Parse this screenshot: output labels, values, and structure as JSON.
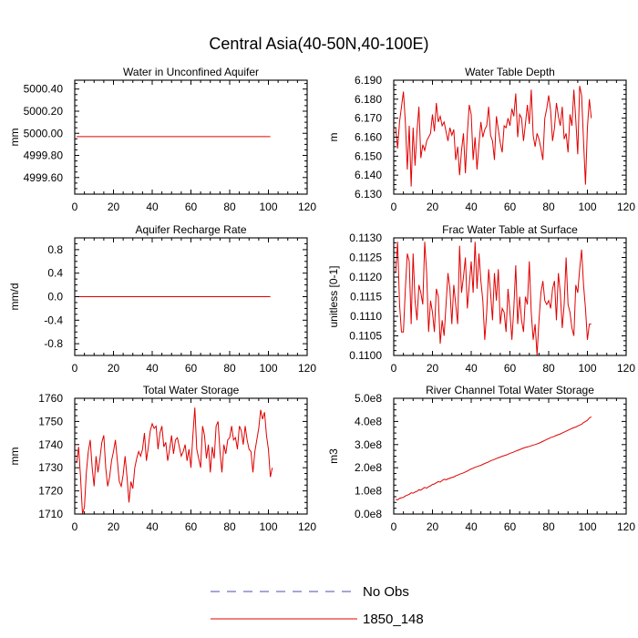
{
  "figure_title": "Central Asia(40-50N,40-100E)",
  "legend": [
    {
      "label": "No Obs",
      "color": "#4b4bb4",
      "style": "dashed"
    },
    {
      "label": "1850_148",
      "color": "#e00000",
      "style": "solid"
    }
  ],
  "chart_data": [
    {
      "type": "line",
      "title": "Water in Unconfined Aquifer",
      "ylabel": "mm",
      "xlim": [
        0,
        120
      ],
      "ylim": [
        4999.45,
        5000.48
      ],
      "xticks": [
        0,
        20,
        40,
        60,
        80,
        100,
        120
      ],
      "yticks": [
        4999.6,
        4999.8,
        5000.0,
        5000.2,
        5000.4
      ],
      "ytick_labels": [
        "4999.60",
        "4999.80",
        "5000.00",
        "5000.20",
        "5000.40"
      ],
      "series": [
        {
          "name": "1850_148",
          "x_start": 1,
          "x_step": 1,
          "values": [
            4999.97,
            4999.97,
            4999.97,
            4999.97,
            4999.97,
            4999.97,
            4999.97,
            4999.97,
            4999.97,
            4999.97,
            4999.97,
            4999.97,
            4999.97,
            4999.97,
            4999.97,
            4999.97,
            4999.97,
            4999.97,
            4999.97,
            4999.97,
            4999.97,
            4999.97,
            4999.97,
            4999.97,
            4999.97,
            4999.97,
            4999.97,
            4999.97,
            4999.97,
            4999.97,
            4999.97,
            4999.97,
            4999.97,
            4999.97,
            4999.97,
            4999.97,
            4999.97,
            4999.97,
            4999.97,
            4999.97,
            4999.97,
            4999.97,
            4999.97,
            4999.97,
            4999.97,
            4999.97,
            4999.97,
            4999.97,
            4999.97,
            4999.97,
            4999.97,
            4999.97,
            4999.97,
            4999.97,
            4999.97,
            4999.97,
            4999.97,
            4999.97,
            4999.97,
            4999.97,
            4999.97,
            4999.97,
            4999.97,
            4999.97,
            4999.97,
            4999.97,
            4999.97,
            4999.97,
            4999.97,
            4999.97,
            4999.97,
            4999.97,
            4999.97,
            4999.97,
            4999.97,
            4999.97,
            4999.97,
            4999.97,
            4999.97,
            4999.97,
            4999.97,
            4999.97,
            4999.97,
            4999.97,
            4999.97,
            4999.97,
            4999.97,
            4999.97,
            4999.97,
            4999.97,
            4999.97,
            4999.97,
            4999.97,
            4999.97,
            4999.97,
            4999.97,
            4999.97,
            4999.97,
            4999.97,
            4999.97,
            4999.97
          ]
        }
      ]
    },
    {
      "type": "line",
      "title": "Water Table Depth",
      "ylabel": "m",
      "xlim": [
        0,
        120
      ],
      "ylim": [
        6.13,
        6.19
      ],
      "xticks": [
        0,
        20,
        40,
        60,
        80,
        100,
        120
      ],
      "yticks": [
        6.13,
        6.14,
        6.15,
        6.16,
        6.17,
        6.18,
        6.19
      ],
      "ytick_labels": [
        "6.130",
        "6.140",
        "6.150",
        "6.160",
        "6.170",
        "6.180",
        "6.190"
      ],
      "series": [
        {
          "name": "1850_148",
          "x_start": 1,
          "x_step": 1,
          "values": [
            6.165,
            6.154,
            6.168,
            6.176,
            6.184,
            6.168,
            6.143,
            6.166,
            6.134,
            6.165,
            6.145,
            6.163,
            6.176,
            6.149,
            6.156,
            6.153,
            6.158,
            6.16,
            6.162,
            6.172,
            6.163,
            6.178,
            6.168,
            6.171,
            6.166,
            6.168,
            6.163,
            6.158,
            6.165,
            6.161,
            6.164,
            6.148,
            6.155,
            6.14,
            6.153,
            6.162,
            6.141,
            6.162,
            6.177,
            6.172,
            6.148,
            6.16,
            6.143,
            6.156,
            6.168,
            6.16,
            6.164,
            6.166,
            6.176,
            6.161,
            6.158,
            6.148,
            6.171,
            6.164,
            6.157,
            6.152,
            6.166,
            6.165,
            6.17,
            6.166,
            6.175,
            6.171,
            6.183,
            6.16,
            6.172,
            6.17,
            6.158,
            6.167,
            6.177,
            6.167,
            6.185,
            6.161,
            6.155,
            6.162,
            6.159,
            6.154,
            6.148,
            6.17,
            6.175,
            6.182,
            6.174,
            6.158,
            6.165,
            6.178,
            6.171,
            6.166,
            6.176,
            6.159,
            6.162,
            6.152,
            6.172,
            6.166,
            6.185,
            6.169,
            6.151,
            6.187,
            6.182,
            6.158,
            6.135,
            6.165,
            6.18,
            6.17
          ]
        }
      ]
    },
    {
      "type": "line",
      "title": "Aquifer Recharge Rate",
      "ylabel": "mm/d",
      "xlim": [
        0,
        120
      ],
      "ylim": [
        -1.0,
        1.0
      ],
      "xticks": [
        0,
        20,
        40,
        60,
        80,
        100,
        120
      ],
      "yticks": [
        -0.8,
        -0.4,
        0.0,
        0.4,
        0.8
      ],
      "ytick_labels": [
        "-0.8",
        "-0.4",
        "0.0",
        "0.4",
        "0.8"
      ],
      "series": [
        {
          "name": "1850_148",
          "x_start": 1,
          "x_step": 1,
          "values": [
            0.0,
            0.0,
            0.0,
            0.0,
            0.0,
            0.0,
            0.0,
            0.0,
            0.0,
            0.0,
            0.0,
            0.0,
            0.0,
            0.0,
            0.0,
            0.0,
            0.0,
            0.0,
            0.0,
            0.0,
            0.0,
            0.0,
            0.0,
            0.0,
            0.0,
            0.0,
            0.0,
            0.0,
            0.0,
            0.0,
            0.0,
            0.0,
            0.0,
            0.0,
            0.0,
            0.0,
            0.0,
            0.0,
            0.0,
            0.0,
            0.0,
            0.0,
            0.0,
            0.0,
            0.0,
            0.0,
            0.0,
            0.0,
            0.0,
            0.0,
            0.0,
            0.0,
            0.0,
            0.0,
            0.0,
            0.0,
            0.0,
            0.0,
            0.0,
            0.0,
            0.0,
            0.0,
            0.0,
            0.0,
            0.0,
            0.0,
            0.0,
            0.0,
            0.0,
            0.0,
            0.0,
            0.0,
            0.0,
            0.0,
            0.0,
            0.0,
            0.0,
            0.0,
            0.0,
            0.0,
            0.0,
            0.0,
            0.0,
            0.0,
            0.0,
            0.0,
            0.0,
            0.0,
            0.0,
            0.0,
            0.0,
            0.0,
            0.0,
            0.0,
            0.0,
            0.0,
            0.0,
            0.0,
            0.0,
            0.0,
            0.0
          ]
        }
      ]
    },
    {
      "type": "line",
      "title": "Frac Water Table at Surface",
      "ylabel": "unitless [0-1]",
      "xlim": [
        0,
        120
      ],
      "ylim": [
        0.11,
        0.113
      ],
      "xticks": [
        0,
        20,
        40,
        60,
        80,
        100,
        120
      ],
      "yticks": [
        0.11,
        0.1105,
        0.111,
        0.1115,
        0.112,
        0.1125,
        0.113
      ],
      "ytick_labels": [
        "0.1100",
        "0.1105",
        "0.1110",
        "0.1115",
        "0.1120",
        "0.1125",
        "0.1130"
      ],
      "series": [
        {
          "name": "1850_148",
          "x_start": 1,
          "x_step": 1,
          "values": [
            0.1121,
            0.1129,
            0.1113,
            0.1106,
            0.1106,
            0.1117,
            0.1126,
            0.1124,
            0.1108,
            0.1126,
            0.1114,
            0.1109,
            0.1118,
            0.1116,
            0.1113,
            0.1129,
            0.1121,
            0.1106,
            0.1114,
            0.1111,
            0.1106,
            0.1117,
            0.1115,
            0.1103,
            0.1109,
            0.1105,
            0.1113,
            0.1121,
            0.1117,
            0.1108,
            0.1118,
            0.1113,
            0.1108,
            0.1128,
            0.1116,
            0.112,
            0.1125,
            0.1112,
            0.1118,
            0.1124,
            0.1116,
            0.1129,
            0.1117,
            0.1126,
            0.1119,
            0.1114,
            0.1104,
            0.1111,
            0.1122,
            0.1116,
            0.1109,
            0.1121,
            0.1114,
            0.1122,
            0.1108,
            0.1112,
            0.1111,
            0.1106,
            0.1117,
            0.1111,
            0.1104,
            0.1112,
            0.1123,
            0.1108,
            0.1115,
            0.1109,
            0.1106,
            0.1115,
            0.1113,
            0.1124,
            0.1111,
            0.1104,
            0.1108,
            0.11,
            0.1109,
            0.1116,
            0.1119,
            0.1114,
            0.1113,
            0.1114,
            0.1112,
            0.1117,
            0.1119,
            0.1109,
            0.1121,
            0.1116,
            0.1107,
            0.1113,
            0.1125,
            0.1113,
            0.1111,
            0.1107,
            0.1105,
            0.1118,
            0.1116,
            0.1122,
            0.1127,
            0.1118,
            0.1112,
            0.1104,
            0.1108,
            0.1108
          ]
        }
      ]
    },
    {
      "type": "line",
      "title": "Total Water Storage",
      "ylabel": "mm",
      "xlim": [
        0,
        120
      ],
      "ylim": [
        1710,
        1760
      ],
      "xticks": [
        0,
        20,
        40,
        60,
        80,
        100,
        120
      ],
      "yticks": [
        1710,
        1720,
        1730,
        1740,
        1750,
        1760
      ],
      "ytick_labels": [
        "1710",
        "1720",
        "1730",
        "1740",
        "1750",
        "1760"
      ],
      "series": [
        {
          "name": "1850_148",
          "x_start": 1,
          "x_step": 1,
          "values": [
            1732,
            1739,
            1726,
            1710,
            1713,
            1728,
            1737,
            1742,
            1730,
            1722,
            1735,
            1728,
            1734,
            1741,
            1744,
            1730,
            1722,
            1726,
            1733,
            1737,
            1742,
            1733,
            1724,
            1722,
            1727,
            1735,
            1726,
            1715,
            1724,
            1721,
            1730,
            1734,
            1737,
            1735,
            1738,
            1745,
            1733,
            1739,
            1746,
            1749,
            1747,
            1748,
            1738,
            1745,
            1748,
            1739,
            1741,
            1733,
            1738,
            1744,
            1736,
            1742,
            1743,
            1739,
            1735,
            1737,
            1740,
            1733,
            1738,
            1730,
            1744,
            1756,
            1738,
            1734,
            1730,
            1748,
            1744,
            1734,
            1740,
            1728,
            1739,
            1734,
            1748,
            1750,
            1737,
            1728,
            1740,
            1736,
            1742,
            1743,
            1748,
            1742,
            1743,
            1738,
            1748,
            1746,
            1740,
            1748,
            1742,
            1738,
            1737,
            1728,
            1737,
            1742,
            1747,
            1755,
            1751,
            1754,
            1744,
            1738,
            1726,
            1730
          ]
        }
      ]
    },
    {
      "type": "line",
      "title": "River Channel Total Water Storage",
      "ylabel": "m3",
      "xlim": [
        0,
        120
      ],
      "ylim": [
        0,
        500000000
      ],
      "xticks": [
        0,
        20,
        40,
        60,
        80,
        100,
        120
      ],
      "yticks": [
        0,
        100000000,
        200000000,
        300000000,
        400000000,
        500000000
      ],
      "ytick_labels": [
        "0.0e8",
        "1.0e8",
        "2.0e8",
        "3.0e8",
        "4.0e8",
        "5.0e8"
      ],
      "series": [
        {
          "name": "1850_148",
          "x_start": 1,
          "x_step": 1,
          "values": [
            63000000,
            61000000,
            68000000,
            70000000,
            72000000,
            78000000,
            82000000,
            85000000,
            92000000,
            90000000,
            95000000,
            98000000,
            105000000,
            103000000,
            110000000,
            115000000,
            112000000,
            118000000,
            122000000,
            128000000,
            130000000,
            135000000,
            140000000,
            138000000,
            145000000,
            150000000,
            148000000,
            152000000,
            155000000,
            158000000,
            160000000,
            165000000,
            168000000,
            172000000,
            175000000,
            178000000,
            182000000,
            186000000,
            190000000,
            195000000,
            198000000,
            202000000,
            205000000,
            208000000,
            210000000,
            215000000,
            218000000,
            222000000,
            225000000,
            230000000,
            233000000,
            236000000,
            240000000,
            243000000,
            246000000,
            250000000,
            252000000,
            255000000,
            258000000,
            262000000,
            265000000,
            268000000,
            272000000,
            275000000,
            278000000,
            282000000,
            285000000,
            288000000,
            290000000,
            292000000,
            295000000,
            298000000,
            300000000,
            303000000,
            306000000,
            310000000,
            314000000,
            318000000,
            322000000,
            326000000,
            330000000,
            333000000,
            336000000,
            340000000,
            343000000,
            346000000,
            350000000,
            354000000,
            358000000,
            362000000,
            366000000,
            370000000,
            373000000,
            376000000,
            380000000,
            384000000,
            388000000,
            395000000,
            400000000,
            405000000,
            415000000,
            420000000
          ]
        }
      ]
    }
  ]
}
